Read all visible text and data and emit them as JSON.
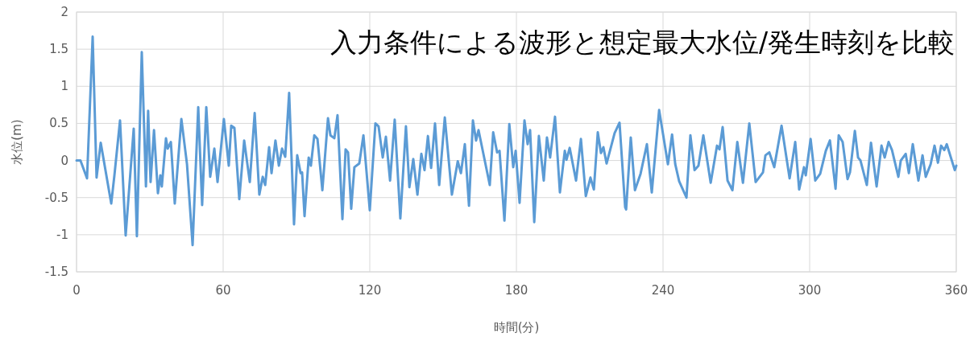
{
  "chart_data": {
    "type": "line",
    "title": "入力条件による波形と想定最大水位/発生時刻を比較",
    "xlabel": "時間(分)",
    "ylabel": "水位(m)",
    "xlim": [
      0,
      360
    ],
    "xticks": [
      0,
      60,
      120,
      180,
      240,
      300,
      360
    ],
    "ylim": [
      -1.5,
      2
    ],
    "yticks": [
      -1.5,
      -1,
      -0.5,
      0,
      0.5,
      1,
      1.5,
      2
    ],
    "grid": true,
    "marker": "none",
    "line_style": "solid",
    "series": [
      {
        "color": "#5b9bd5",
        "x": [
          0,
          1.6,
          4.3,
          6.6,
          8.2,
          9.9,
          14.2,
          15.5,
          17.8,
          20.1,
          23.4,
          24.7,
          26.7,
          28.4,
          29.3,
          30.3,
          31.7,
          33.3,
          34.3,
          34.9,
          36.6,
          37.3,
          38.6,
          40.2,
          42.9,
          45.2,
          47.5,
          49.8,
          51.4,
          53.1,
          54.7,
          56.4,
          57.7,
          60.3,
          62.3,
          63.3,
          64.6,
          66.6,
          68.6,
          70.9,
          72.9,
          74.8,
          76.2,
          77.2,
          78.8,
          79.8,
          81.4,
          82.8,
          84.1,
          85.4,
          87.0,
          89.0,
          90.3,
          91.7,
          92.3,
          93.3,
          95.0,
          95.9,
          97.3,
          98.6,
          100.6,
          102.9,
          103.9,
          105.5,
          106.8,
          108.8,
          110.1,
          111.1,
          112.4,
          113.7,
          115.7,
          117.4,
          120.0,
          122.3,
          123.6,
          125.3,
          126.6,
          128.3,
          130.2,
          132.5,
          134.8,
          136.2,
          137.8,
          139.5,
          141.1,
          142.4,
          143.8,
          145.1,
          146.7,
          148.4,
          150.7,
          153.6,
          156.0,
          157.3,
          158.9,
          160.6,
          162.2,
          163.5,
          164.5,
          169.1,
          170.5,
          172.1,
          173.1,
          175.1,
          177.1,
          178.7,
          179.7,
          181.3,
          183.3,
          184.6,
          185.6,
          187.3,
          189.2,
          191.2,
          192.5,
          193.8,
          195.8,
          197.8,
          199.8,
          200.5,
          201.8,
          204.4,
          206.4,
          208.4,
          210.3,
          211.7,
          213.3,
          214.6,
          215.6,
          216.9,
          220.2,
          222.2,
          224.5,
          224.9,
          226.8,
          228.5,
          230.8,
          233.4,
          235.4,
          238.4,
          242.0,
          243.7,
          245.0,
          246.6,
          249.6,
          251.2,
          252.9,
          254.5,
          256.5,
          259.5,
          262.1,
          263.1,
          264.4,
          266.4,
          268.4,
          270.4,
          272.7,
          275.3,
          277.9,
          280.9,
          281.9,
          283.5,
          285.5,
          288.5,
          291.8,
          294.1,
          295.7,
          297.7,
          298.4,
          300.4,
          302.3,
          304.3,
          306.6,
          308.3,
          310.6,
          311.9,
          313.5,
          315.5,
          316.5,
          318.5,
          319.8,
          320.8,
          323.4,
          325.1,
          327.4,
          329.4,
          330.7,
          332.3,
          333.7,
          336.3,
          337.3,
          339.3,
          340.6,
          342.2,
          344.5,
          346.2,
          347.5,
          349.5,
          351.1,
          352.5,
          353.8,
          355.1,
          356.1,
          359.4,
          360
        ],
        "values": [
          0,
          0,
          -0.24,
          1.67,
          -0.23,
          0.24,
          -0.58,
          -0.2,
          0.54,
          -1.01,
          0.43,
          -1.02,
          1.46,
          -0.35,
          0.67,
          -0.29,
          0.41,
          -0.44,
          -0.2,
          -0.35,
          0.3,
          0.16,
          0.25,
          -0.58,
          0.56,
          -0.05,
          -1.14,
          0.72,
          -0.6,
          0.72,
          -0.22,
          0.16,
          -0.29,
          0.56,
          -0.07,
          0.47,
          0.44,
          -0.52,
          0.27,
          -0.29,
          0.64,
          -0.46,
          -0.22,
          -0.33,
          0.18,
          -0.17,
          0.27,
          -0.07,
          0.16,
          0.05,
          0.91,
          -0.86,
          0.07,
          -0.17,
          -0.16,
          -0.75,
          0.04,
          -0.07,
          0.34,
          0.29,
          -0.4,
          0.57,
          0.34,
          0.3,
          0.61,
          -0.79,
          0.15,
          0.11,
          -0.65,
          -0.09,
          -0.04,
          0.34,
          -0.67,
          0.5,
          0.46,
          0.04,
          0.32,
          -0.27,
          0.55,
          -0.78,
          0.46,
          -0.36,
          0.02,
          -0.46,
          0.09,
          -0.13,
          0.33,
          -0.1,
          0.5,
          -0.33,
          0.58,
          -0.46,
          -0.01,
          -0.17,
          0.22,
          -0.61,
          0.54,
          0.27,
          0.41,
          -0.33,
          0.38,
          0.11,
          0.13,
          -0.81,
          0.49,
          -0.09,
          0.13,
          -0.57,
          0.54,
          0.22,
          0.41,
          -0.83,
          0.33,
          -0.27,
          0.31,
          0.04,
          0.59,
          -0.43,
          0.13,
          0.01,
          0.17,
          -0.27,
          0.29,
          -0.48,
          -0.23,
          -0.39,
          0.38,
          0.1,
          0.18,
          -0.04,
          0.37,
          0.51,
          -0.63,
          -0.66,
          0.31,
          -0.4,
          -0.18,
          0.22,
          -0.43,
          0.68,
          -0.05,
          0.35,
          -0.05,
          -0.28,
          -0.5,
          0.34,
          -0.13,
          -0.07,
          0.34,
          -0.3,
          0.2,
          0.15,
          0.45,
          -0.27,
          -0.4,
          0.25,
          -0.3,
          0.5,
          -0.29,
          -0.16,
          0.07,
          0.11,
          -0.09,
          0.47,
          -0.24,
          0.25,
          -0.39,
          -0.09,
          -0.2,
          0.29,
          -0.27,
          -0.18,
          0.13,
          0.27,
          -0.38,
          0.34,
          0.25,
          -0.25,
          -0.16,
          0.4,
          0.04,
          0,
          -0.33,
          0.24,
          -0.35,
          0.2,
          0.04,
          0.25,
          0.14,
          -0.22,
          0,
          0.09,
          -0.17,
          0.22,
          -0.27,
          0.07,
          -0.22,
          -0.05,
          0.2,
          -0.03,
          0.2,
          0.14,
          0.22,
          -0.13,
          -0.07
        ]
      }
    ]
  }
}
